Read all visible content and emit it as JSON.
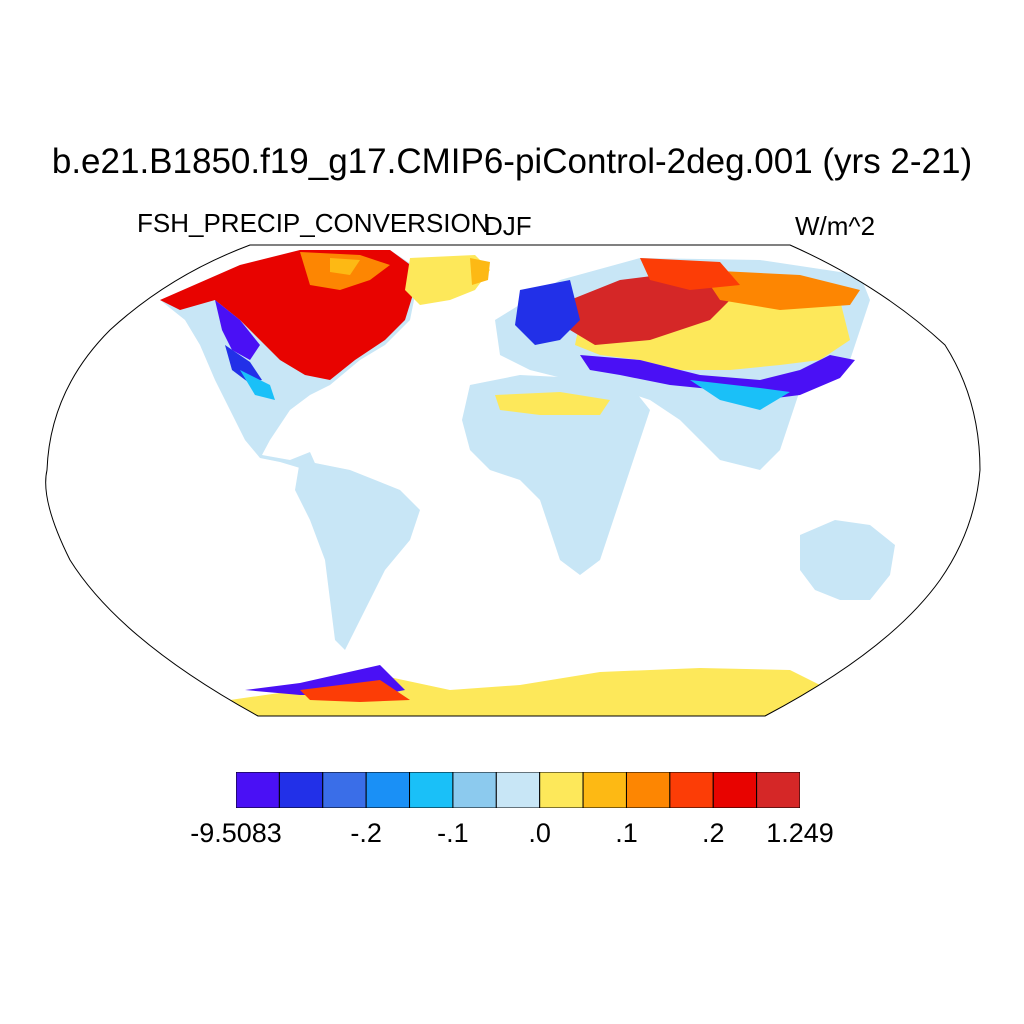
{
  "title": "b.e21.B1850.f19_g17.CMIP6-piControl-2deg.001 (yrs 2-21)",
  "variable": "FSH_PRECIP_CONVERSION",
  "season": "DJF",
  "units": "W/m^2",
  "colorbar": {
    "colors": [
      "#4a10f5",
      "#2230e8",
      "#3a6ee8",
      "#1a90f6",
      "#1ac0f8",
      "#8ccaee",
      "#c8e6f6",
      "#fde85a",
      "#fdb914",
      "#fd8602",
      "#fc3d06",
      "#e80300",
      "#d52727"
    ],
    "labels": [
      {
        "text": "-9.5083",
        "boundary": 0
      },
      {
        "text": "-.2",
        "boundary": 3
      },
      {
        "text": "-.1",
        "boundary": 5
      },
      {
        "text": ".0",
        "boundary": 7
      },
      {
        "text": ".1",
        "boundary": 9
      },
      {
        "text": ".2",
        "boundary": 11
      },
      {
        "text": "1.249",
        "boundary": 13
      }
    ]
  },
  "map": {
    "projection": "robinson",
    "background_land_color": "#c8e6f6",
    "ocean_color": "#ffffff"
  }
}
